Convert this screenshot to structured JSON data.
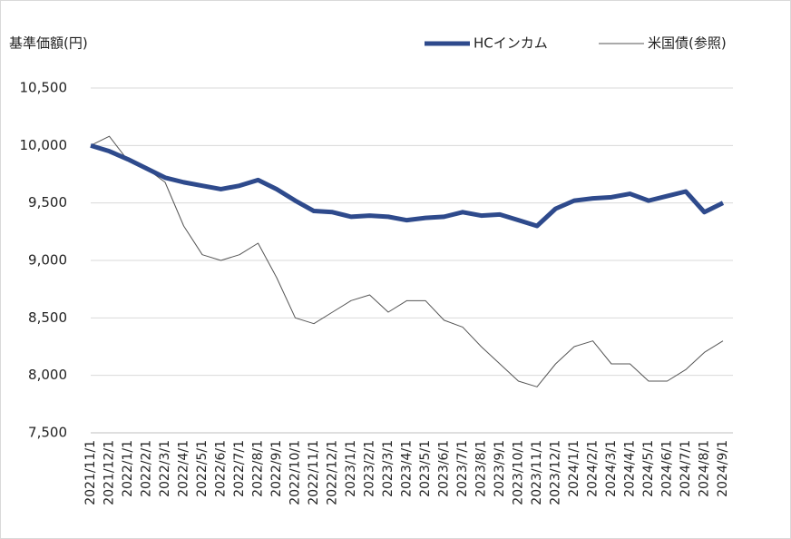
{
  "chart_data": {
    "type": "line",
    "y_label": "基準価額(円)",
    "categories": [
      "2021/11/1",
      "2021/12/1",
      "2022/1/1",
      "2022/2/1",
      "2022/3/1",
      "2022/4/1",
      "2022/5/1",
      "2022/6/1",
      "2022/7/1",
      "2022/8/1",
      "2022/9/1",
      "2022/10/1",
      "2022/11/1",
      "2022/12/1",
      "2023/1/1",
      "2023/2/1",
      "2023/3/1",
      "2023/4/1",
      "2023/5/1",
      "2023/6/1",
      "2023/7/1",
      "2023/8/1",
      "2023/9/1",
      "2023/10/1",
      "2023/11/1",
      "2023/12/1",
      "2024/1/1",
      "2024/2/1",
      "2024/3/1",
      "2024/4/1",
      "2024/5/1",
      "2024/6/1",
      "2024/7/1",
      "2024/8/1",
      "2024/9/1"
    ],
    "series": [
      {
        "name": "HCインカム",
        "color": "#2e4a8c",
        "values": [
          10000,
          9950,
          9880,
          9800,
          9720,
          9680,
          9650,
          9620,
          9650,
          9700,
          9620,
          9520,
          9430,
          9420,
          9380,
          9390,
          9380,
          9350,
          9370,
          9380,
          9420,
          9390,
          9400,
          9350,
          9300,
          9450,
          9520,
          9540,
          9550,
          9580,
          9520,
          9560,
          9600,
          9420,
          9500
        ]
      },
      {
        "name": "米国債(参照)",
        "color": "#555555",
        "values": [
          10000,
          10080,
          9870,
          9800,
          9680,
          9300,
          9050,
          9000,
          9050,
          9150,
          8850,
          8500,
          8450,
          8550,
          8650,
          8700,
          8550,
          8650,
          8650,
          8480,
          8420,
          8250,
          8100,
          7950,
          7900,
          8100,
          8250,
          8300,
          8100,
          8100,
          7950,
          7950,
          8050,
          8200,
          8300
        ]
      }
    ],
    "ylim": [
      7500,
      10500
    ],
    "yticks": [
      {
        "value": 7500,
        "label": "7,500"
      },
      {
        "value": 8000,
        "label": "8,000"
      },
      {
        "value": 8500,
        "label": "8,500"
      },
      {
        "value": 9000,
        "label": "9,000"
      },
      {
        "value": 9500,
        "label": "9,500"
      },
      {
        "value": 10000,
        "label": "10,000"
      },
      {
        "value": 10500,
        "label": "10,500"
      }
    ],
    "grid": true,
    "legend": "top-right"
  }
}
